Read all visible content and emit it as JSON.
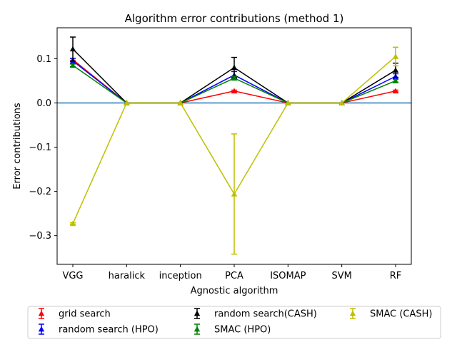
{
  "chart_data": {
    "type": "line",
    "title": "Algorithm error contributions (method 1)",
    "xlabel": "Agnostic algorithm",
    "ylabel": "Error contributions",
    "categories": [
      "VGG",
      "haralick",
      "inception",
      "PCA",
      "ISOMAP",
      "SVM",
      "RF"
    ],
    "ylim": [
      -0.365,
      0.17
    ],
    "yticks": [
      0.1,
      0.0,
      -0.1,
      -0.2,
      -0.3
    ],
    "ytick_labels": [
      "0.1",
      "0.0",
      "−0.1",
      "−0.2",
      "−0.3"
    ],
    "reference_line": {
      "y": 0.0,
      "color": "#1f77b4"
    },
    "grid": false,
    "legend_position": "bottom",
    "series": [
      {
        "name": "grid search",
        "color": "#ff0000",
        "values": [
          0.098,
          0.0,
          0.0,
          0.027,
          0.0,
          0.0,
          0.027
        ],
        "err": [
          0.003,
          0.0,
          0.0,
          0.002,
          0.0,
          0.0,
          0.002
        ]
      },
      {
        "name": "random search (HPO)",
        "color": "#0000ff",
        "values": [
          0.095,
          0.0,
          0.0,
          0.063,
          0.0,
          0.0,
          0.06
        ],
        "err": [
          0.006,
          0.0,
          0.0,
          0.008,
          0.0,
          0.0,
          0.006
        ]
      },
      {
        "name": "random search(CASH)",
        "color": "#000000",
        "values": [
          0.122,
          0.0,
          0.0,
          0.08,
          0.0,
          0.0,
          0.074
        ],
        "err": [
          0.027,
          0.0,
          0.0,
          0.023,
          0.0,
          0.0,
          0.016
        ]
      },
      {
        "name": "SMAC (HPO)",
        "color": "#008000",
        "values": [
          0.085,
          0.0,
          0.0,
          0.056,
          0.0,
          0.0,
          0.05
        ],
        "err": [
          0.003,
          0.0,
          0.0,
          0.003,
          0.0,
          0.0,
          0.003
        ]
      },
      {
        "name": "SMAC (CASH)",
        "color": "#bfbf00",
        "values": [
          -0.273,
          0.0,
          0.0,
          -0.206,
          0.0,
          0.0,
          0.105
        ],
        "err": [
          0.002,
          0.0,
          0.0,
          0.136,
          0.0,
          0.0,
          0.021
        ]
      }
    ]
  }
}
